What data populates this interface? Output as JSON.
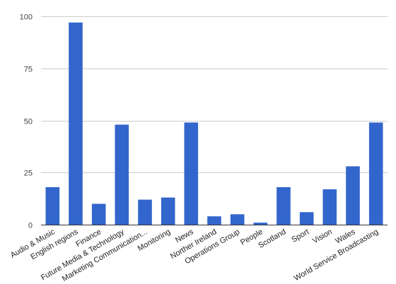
{
  "chart_data": {
    "type": "bar",
    "title": "",
    "xlabel": "",
    "ylabel": "",
    "ylim": [
      0,
      100
    ],
    "yticks": [
      0,
      25,
      50,
      75,
      100
    ],
    "grid": true,
    "legend": "none",
    "bar_color": "#3366cc",
    "categories": [
      "Audio & Music",
      "English regions",
      "Finance",
      "Future Media & Technology",
      "Marketing Communication...",
      "Monitoring",
      "News",
      "Norther Ireland",
      "Operations Group",
      "People",
      "Scotland",
      "Sport",
      "Vision",
      "Wales",
      "World Service Broadcasting"
    ],
    "values": [
      18,
      97,
      10,
      48,
      12,
      13,
      49,
      4,
      5,
      1,
      18,
      6,
      17,
      28,
      49
    ]
  }
}
